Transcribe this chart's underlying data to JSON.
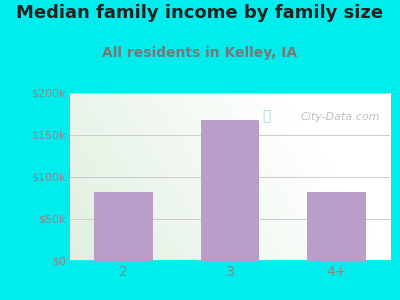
{
  "title": "Median family income by family size",
  "subtitle": "All residents in Kelley, IA",
  "categories": [
    "2",
    "3",
    "4+"
  ],
  "values": [
    82000,
    168000,
    82000
  ],
  "bar_color": "#b89ec8",
  "outer_bg": "#00eded",
  "ylim": [
    0,
    200000
  ],
  "yticks": [
    0,
    50000,
    100000,
    150000,
    200000
  ],
  "ytick_labels": [
    "$0",
    "$50k",
    "$100k",
    "$150k",
    "$200k"
  ],
  "title_fontsize": 13,
  "subtitle_fontsize": 10,
  "title_color": "#222222",
  "subtitle_color": "#777777",
  "tick_color": "#888888",
  "watermark": "City-Data.com",
  "watermark_color": "#aaaaaa",
  "grid_color": "#cccccc",
  "plot_bg_left": "#dff0df",
  "plot_bg_right": "#f8fff8"
}
